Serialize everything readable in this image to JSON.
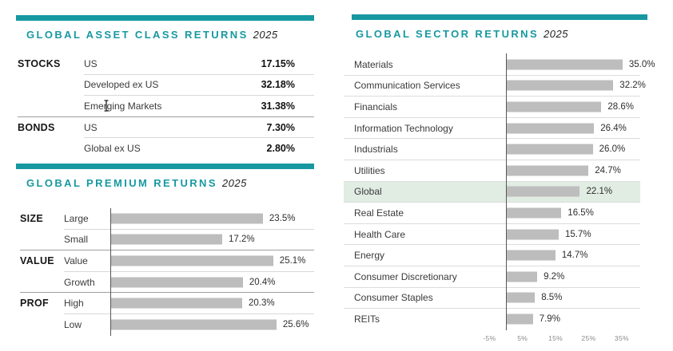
{
  "colors": {
    "accent": "#1798a1",
    "bar_fill": "#bdbdbd",
    "highlight_row": "#e1ece3"
  },
  "asset_class": {
    "title": "GLOBAL ASSET CLASS RETURNS",
    "year": "2025",
    "rows": [
      {
        "group": "STOCKS",
        "label": "US",
        "value": "17.15%"
      },
      {
        "group": "",
        "label": "Developed ex US",
        "value": "32.18%"
      },
      {
        "group": "",
        "label": "Emerging Markets",
        "value": "31.38%"
      },
      {
        "group": "BONDS",
        "label": "US",
        "value": "7.30%"
      },
      {
        "group": "",
        "label": "Global ex US",
        "value": "2.80%"
      }
    ]
  },
  "premium": {
    "title": "GLOBAL PREMIUM RETURNS",
    "year": "2025",
    "chart_data": {
      "type": "bar",
      "orientation": "horizontal",
      "title": "GLOBAL PREMIUM RETURNS 2025",
      "unit": "%",
      "groups": [
        {
          "name": "SIZE",
          "bars": [
            {
              "label": "Large",
              "value": 23.5
            },
            {
              "label": "Small",
              "value": 17.2
            }
          ]
        },
        {
          "name": "VALUE",
          "bars": [
            {
              "label": "Value",
              "value": 25.1
            },
            {
              "label": "Growth",
              "value": 20.4
            }
          ]
        },
        {
          "name": "PROF",
          "bars": [
            {
              "label": "High",
              "value": 20.3
            },
            {
              "label": "Low",
              "value": 25.6
            }
          ]
        }
      ],
      "xlim": [
        0,
        30
      ],
      "grid": false,
      "legend": false,
      "data_labels": true
    }
  },
  "sector": {
    "title": "GLOBAL SECTOR RETURNS",
    "year": "2025",
    "chart_data": {
      "type": "bar",
      "orientation": "horizontal",
      "title": "GLOBAL SECTOR RETURNS 2025",
      "unit": "%",
      "categories": [
        "Materials",
        "Communication Services",
        "Financials",
        "Information Technology",
        "Industrials",
        "Utilities",
        "Global",
        "Real Estate",
        "Health Care",
        "Energy",
        "Consumer Discretionary",
        "Consumer Staples",
        "REITs"
      ],
      "values": [
        35.0,
        32.2,
        28.6,
        26.4,
        26.0,
        24.7,
        22.1,
        16.5,
        15.7,
        14.7,
        9.2,
        8.5,
        7.9
      ],
      "highlight_category": "Global",
      "x_ticks": [
        {
          "value": -5,
          "label": "-5%"
        },
        {
          "value": 5,
          "label": "5%"
        },
        {
          "value": 15,
          "label": "15%"
        },
        {
          "value": 25,
          "label": "25%"
        },
        {
          "value": 35,
          "label": "35%"
        }
      ],
      "xlim": [
        -5,
        40
      ],
      "grid": false,
      "legend": false,
      "data_labels": true
    }
  }
}
